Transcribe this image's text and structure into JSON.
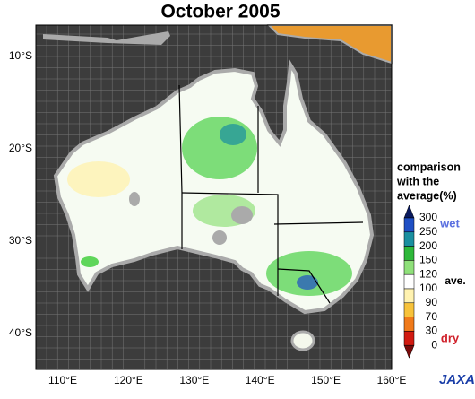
{
  "title": "October 2005",
  "latitude_labels": [
    "10°S",
    "20°S",
    "30°S",
    "40°S"
  ],
  "longitude_labels": [
    "110°E",
    "120°E",
    "130°E",
    "140°E",
    "150°E",
    "160°E"
  ],
  "legend": {
    "title": [
      "comparison",
      "with the",
      "average(%)"
    ],
    "ticks": [
      "300",
      "250",
      "200",
      "150",
      "120",
      "100",
      "90",
      "70",
      "30",
      "0"
    ],
    "colors": [
      "#0a1a5e",
      "#1f4fc4",
      "#1a8fa0",
      "#2eb83a",
      "#8fe07a",
      "#ffffff",
      "#fff2b0",
      "#f7c23a",
      "#f07a1a",
      "#d11a10",
      "#7a0a0a"
    ],
    "wet": "wet",
    "ave": "ave.",
    "dry": "dry"
  },
  "logo": "JAXA"
}
